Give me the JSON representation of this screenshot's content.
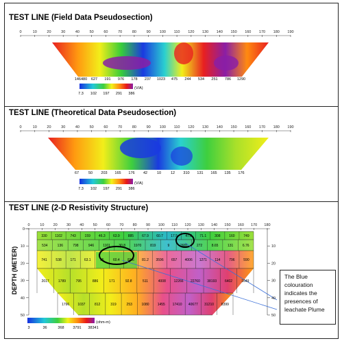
{
  "chart_data": [
    {
      "type": "heatmap",
      "title": "TEST LINE (Field Data Pseudosection)",
      "x_ticks": [
        0,
        10,
        20,
        30,
        40,
        50,
        60,
        70,
        80,
        90,
        100,
        110,
        120,
        130,
        140,
        150,
        160,
        170,
        180,
        190
      ],
      "bottom_row_values": [
        "146480",
        "627",
        "191",
        "976",
        "178",
        "237",
        "1023",
        "475",
        "244",
        "534",
        "251",
        "786",
        "1290"
      ],
      "scale_ticks": [
        "7.3",
        "102",
        "197",
        "291",
        "386"
      ],
      "scale_unit": "(V/A)"
    },
    {
      "type": "heatmap",
      "title": "TEST LINE (Theoretical Data Pseudosection)",
      "x_ticks": [
        0,
        10,
        20,
        30,
        40,
        50,
        60,
        70,
        80,
        90,
        100,
        110,
        120,
        130,
        140,
        150,
        160,
        170,
        180,
        190
      ],
      "bottom_row_values": [
        "67",
        "50",
        "203",
        "165",
        "176",
        "42",
        "10",
        "12",
        "310",
        "131",
        "165",
        "135",
        "176"
      ],
      "scale_ticks": [
        "7.3",
        "102",
        "197",
        "291",
        "386"
      ],
      "scale_unit": "(V/A)"
    },
    {
      "type": "heatmap",
      "title": "TEST LINE (2-D Resistivity Structure)",
      "ylabel": "DEPTH (METER)",
      "x_ticks": [
        0,
        10,
        20,
        30,
        40,
        50,
        60,
        70,
        80,
        90,
        100,
        110,
        120,
        130,
        140,
        150,
        160,
        170,
        180
      ],
      "y_ticks": [
        0,
        10,
        20,
        30,
        40,
        50
      ],
      "y_ticks_right": [
        10,
        20,
        30,
        40,
        50
      ],
      "rows": [
        [
          "330",
          "1102",
          "743",
          "159",
          "46.3",
          "63.9",
          "885",
          "67.9",
          "60.7",
          "17.5",
          "47.8",
          "71.1",
          "308",
          "160",
          "749"
        ],
        [
          "534",
          "136",
          "798",
          "946",
          "1101",
          "30.8",
          "1970",
          "819",
          "9",
          "2681",
          "272",
          "8.65",
          "131",
          "6.76"
        ],
        [
          "741",
          "538",
          "171",
          "63.1",
          "95",
          "60.4",
          "81.6",
          "81.2",
          "3596",
          "657",
          "4006",
          "1271",
          "114",
          "796",
          "590"
        ],
        [
          "2017",
          "1789",
          "795",
          "886",
          "171",
          "92.8",
          "511",
          "4008",
          "12266",
          "22760",
          "38193",
          "6402",
          "1649"
        ],
        [
          "1796",
          "1037",
          "812",
          "319",
          "253",
          "1080",
          "1455",
          "17410",
          "40677",
          "31210",
          "8399"
        ]
      ],
      "scale_ticks": [
        "3",
        "36",
        "368",
        "3791",
        "38341"
      ],
      "scale_unit": "(ohm-m)",
      "annotation": "The Blue colouration indicates the presences of leachate Plume"
    }
  ]
}
